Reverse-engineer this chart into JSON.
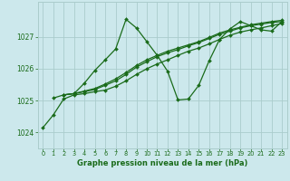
{
  "bg_color": "#cce8ec",
  "grid_color": "#aacccc",
  "line_color": "#1a6b1a",
  "xlabel": "Graphe pression niveau de la mer (hPa)",
  "xlim": [
    -0.5,
    23.5
  ],
  "ylim": [
    1023.5,
    1028.1
  ],
  "yticks": [
    1024,
    1025,
    1026,
    1027
  ],
  "xticks": [
    0,
    1,
    2,
    3,
    4,
    5,
    6,
    7,
    8,
    9,
    10,
    11,
    12,
    13,
    14,
    15,
    16,
    17,
    18,
    19,
    20,
    21,
    22,
    23
  ],
  "lines": [
    {
      "x": [
        0,
        1,
        2,
        3,
        4,
        5,
        6,
        7,
        8,
        9,
        10,
        11,
        12,
        13,
        14,
        15,
        16,
        17,
        18,
        19,
        20,
        21,
        22,
        23
      ],
      "y": [
        1024.15,
        1024.55,
        1025.05,
        1025.18,
        1025.22,
        1025.28,
        1025.33,
        1025.45,
        1025.62,
        1025.82,
        1026.0,
        1026.15,
        1026.28,
        1026.42,
        1026.55,
        1026.65,
        1026.78,
        1026.92,
        1027.05,
        1027.15,
        1027.22,
        1027.28,
        1027.35,
        1027.42
      ]
    },
    {
      "x": [
        1,
        2,
        3,
        4,
        5,
        6,
        7,
        8,
        9,
        10,
        11,
        12,
        13,
        14,
        15,
        16,
        17,
        18,
        19,
        20,
        21,
        22,
        23
      ],
      "y": [
        1025.08,
        1025.18,
        1025.22,
        1025.55,
        1025.95,
        1026.28,
        1026.62,
        1027.55,
        1027.28,
        1026.85,
        1026.42,
        1025.92,
        1025.02,
        1025.05,
        1025.48,
        1026.25,
        1026.92,
        1027.25,
        1027.48,
        1027.35,
        1027.22,
        1027.18,
        1027.48
      ]
    },
    {
      "x": [
        2,
        3,
        4,
        5,
        6,
        7,
        8,
        9,
        10,
        11,
        12,
        13,
        14,
        15,
        16,
        17,
        18,
        19,
        20,
        21,
        22,
        23
      ],
      "y": [
        1025.18,
        1025.22,
        1025.28,
        1025.35,
        1025.48,
        1025.62,
        1025.82,
        1026.05,
        1026.22,
        1026.38,
        1026.5,
        1026.6,
        1026.72,
        1026.82,
        1026.95,
        1027.08,
        1027.18,
        1027.28,
        1027.35,
        1027.4,
        1027.45,
        1027.48
      ]
    },
    {
      "x": [
        2,
        3,
        4,
        5,
        6,
        7,
        8,
        9,
        10,
        11,
        12,
        13,
        14,
        15,
        16,
        17,
        18,
        19,
        20,
        21,
        22,
        23
      ],
      "y": [
        1025.18,
        1025.22,
        1025.3,
        1025.38,
        1025.52,
        1025.68,
        1025.88,
        1026.1,
        1026.28,
        1026.42,
        1026.55,
        1026.65,
        1026.75,
        1026.85,
        1026.98,
        1027.12,
        1027.22,
        1027.3,
        1027.38,
        1027.43,
        1027.48,
        1027.52
      ]
    }
  ]
}
